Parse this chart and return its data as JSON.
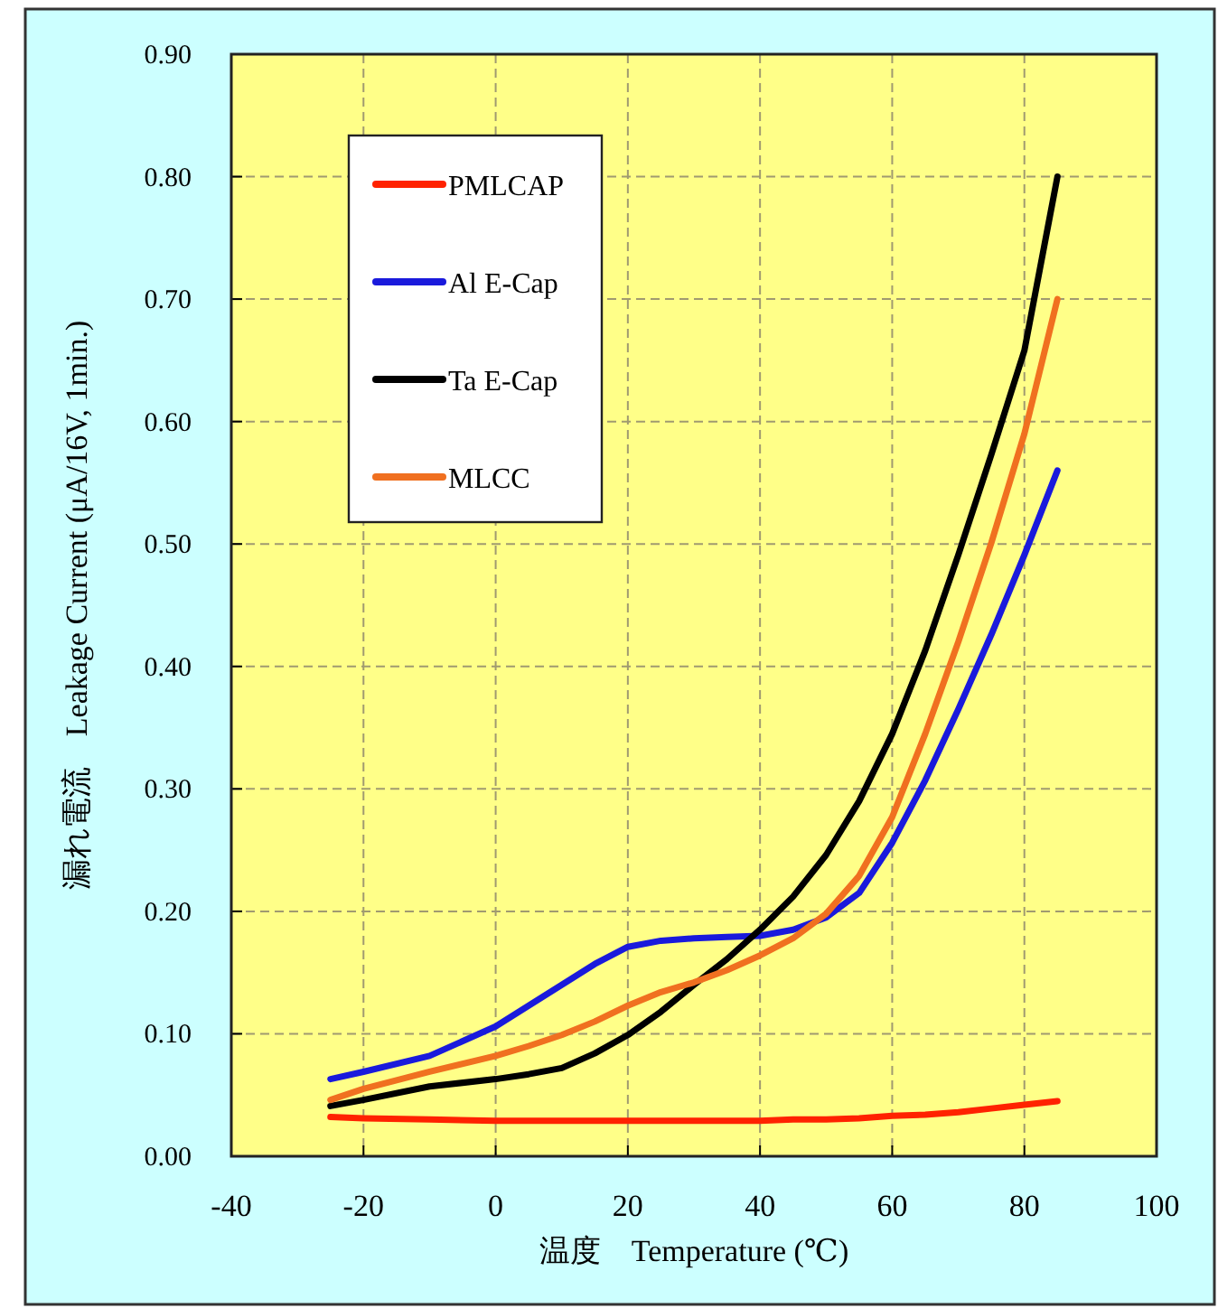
{
  "chart_data": {
    "type": "line",
    "xlabel": "温度　Temperature (℃)",
    "ylabel": "漏れ電流　Leakage Current (μA/16V, 1min.)",
    "x": [
      -25,
      -20,
      -10,
      0,
      5,
      10,
      15,
      20,
      25,
      30,
      35,
      40,
      45,
      50,
      55,
      60,
      65,
      70,
      75,
      80,
      85
    ],
    "series": [
      {
        "name": "PMLCAP",
        "color": "#ff2200",
        "values": [
          0.032,
          0.031,
          0.03,
          0.029,
          0.029,
          0.029,
          0.029,
          0.029,
          0.029,
          0.029,
          0.029,
          0.029,
          0.03,
          0.03,
          0.031,
          0.033,
          0.034,
          0.036,
          0.039,
          0.042,
          0.045
        ]
      },
      {
        "name": "Al E-Cap",
        "color": "#1a1adc",
        "values": [
          0.063,
          0.069,
          0.082,
          0.106,
          0.123,
          0.14,
          0.157,
          0.171,
          0.176,
          0.178,
          0.179,
          0.18,
          0.185,
          0.195,
          0.215,
          0.256,
          0.307,
          0.365,
          0.426,
          0.491,
          0.56
        ]
      },
      {
        "name": "Ta E-Cap",
        "color": "#000000",
        "values": [
          0.041,
          0.046,
          0.057,
          0.063,
          0.067,
          0.072,
          0.084,
          0.099,
          0.118,
          0.14,
          0.161,
          0.185,
          0.212,
          0.246,
          0.29,
          0.345,
          0.413,
          0.491,
          0.573,
          0.658,
          0.8
        ]
      },
      {
        "name": "MLCC",
        "color": "#f07020",
        "values": [
          0.046,
          0.055,
          0.069,
          0.082,
          0.09,
          0.099,
          0.11,
          0.123,
          0.134,
          0.142,
          0.152,
          0.164,
          0.178,
          0.198,
          0.229,
          0.277,
          0.345,
          0.42,
          0.501,
          0.59,
          0.7
        ]
      }
    ],
    "xlim": [
      -40,
      100
    ],
    "xticks": [
      -40,
      -20,
      0,
      20,
      40,
      60,
      80,
      100
    ],
    "ylim": [
      0,
      0.9
    ],
    "yticks": [
      {
        "value": 0,
        "label": "0.00"
      },
      {
        "value": 0.1,
        "label": "0.10"
      },
      {
        "value": 0.2,
        "label": "0.20"
      },
      {
        "value": 0.3,
        "label": "0.30"
      },
      {
        "value": 0.4,
        "label": "0.40"
      },
      {
        "value": 0.5,
        "label": "0.50"
      },
      {
        "value": 0.6,
        "label": "0.60"
      },
      {
        "value": 0.7,
        "label": "0.70"
      },
      {
        "value": 0.8,
        "label": "0.80"
      },
      {
        "value": 0.9,
        "label": "0.90"
      }
    ],
    "grid": true,
    "legend": "top left",
    "marker": "none",
    "line_style": "solid"
  }
}
